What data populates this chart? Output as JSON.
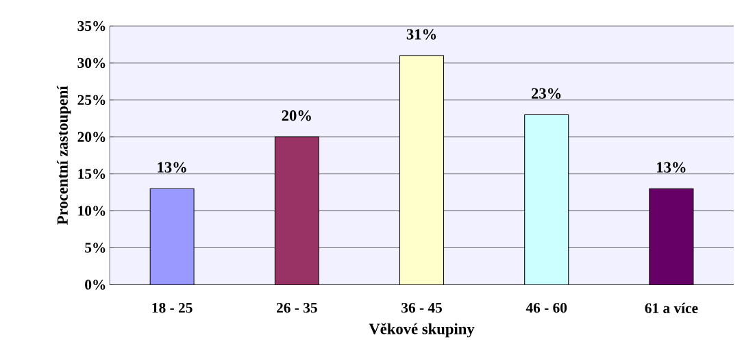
{
  "chart_data": {
    "type": "bar",
    "xlabel": "Věkové skupiny",
    "ylabel": "Procentní zastoupení",
    "categories": [
      "18 - 25",
      "26 - 35",
      "36 - 45",
      "46 - 60",
      "61 a více"
    ],
    "values": [
      13,
      20,
      31,
      23,
      13
    ],
    "colors": [
      "#9999ff",
      "#993366",
      "#ffffcc",
      "#ccffff",
      "#660066"
    ],
    "value_labels": [
      "13%",
      "20%",
      "31%",
      "23%",
      "13%"
    ],
    "ylim": [
      0,
      35
    ],
    "yticks": [
      {
        "value": 0,
        "label": "0%"
      },
      {
        "value": 5,
        "label": "5%"
      },
      {
        "value": 10,
        "label": "10%"
      },
      {
        "value": 15,
        "label": "15%"
      },
      {
        "value": 20,
        "label": "20%"
      },
      {
        "value": 25,
        "label": "25%"
      },
      {
        "value": 30,
        "label": "30%"
      },
      {
        "value": 35,
        "label": "35%"
      }
    ],
    "grid": "y"
  }
}
